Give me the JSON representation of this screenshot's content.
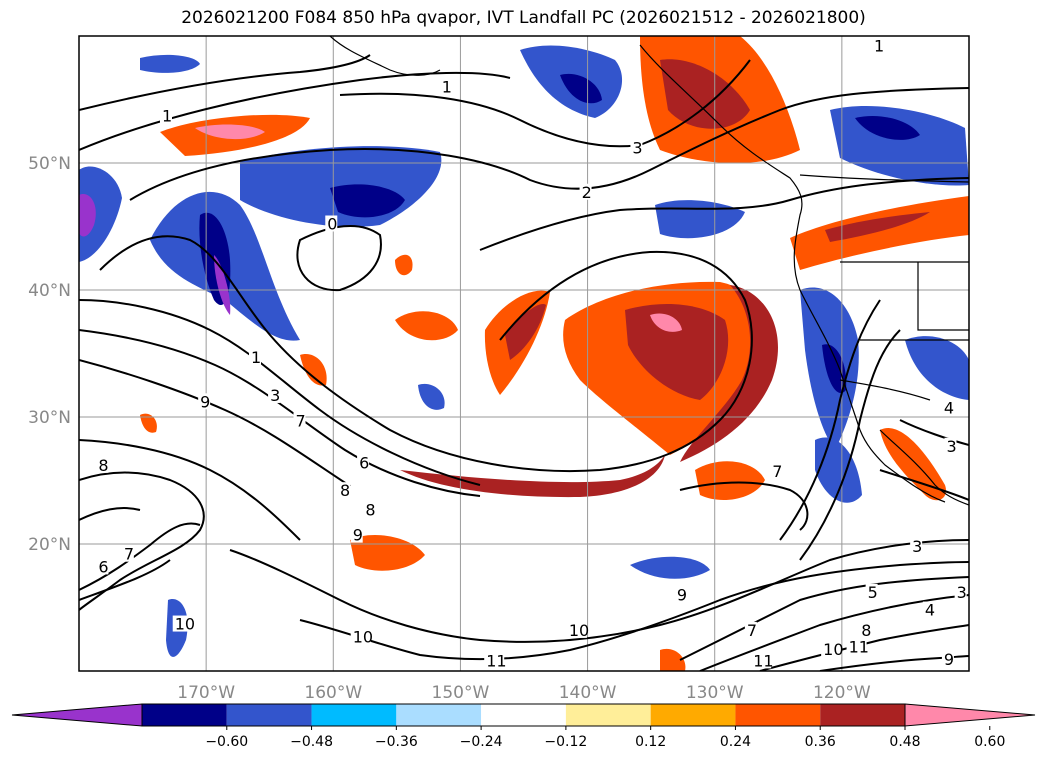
{
  "title": "2026021200 F084 850 hPa qvapor, IVT Landfall PC (2026021512 - 2026021800)",
  "map": {
    "lon_range": [
      -180,
      -110
    ],
    "lat_range": [
      10,
      60
    ],
    "lon_ticks": [
      {
        "value": -170,
        "label": "170°W"
      },
      {
        "value": -160,
        "label": "160°W"
      },
      {
        "value": -150,
        "label": "150°W"
      },
      {
        "value": -140,
        "label": "140°W"
      },
      {
        "value": -130,
        "label": "130°W"
      },
      {
        "value": -120,
        "label": "120°W"
      }
    ],
    "lat_ticks": [
      {
        "value": 20,
        "label": "20°N"
      },
      {
        "value": 30,
        "label": "30°N"
      },
      {
        "value": 40,
        "label": "40°N"
      },
      {
        "value": 50,
        "label": "50°N"
      }
    ],
    "contour_labels": [
      {
        "text": "1",
        "lon": -173,
        "lat": 53.5
      },
      {
        "text": "1",
        "lon": -151,
        "lat": 55.8
      },
      {
        "text": "1",
        "lon": -117,
        "lat": 59
      },
      {
        "text": "3",
        "lon": -136,
        "lat": 51
      },
      {
        "text": "2",
        "lon": -140,
        "lat": 47.5
      },
      {
        "text": "0",
        "lon": -160,
        "lat": 45
      },
      {
        "text": "1",
        "lon": -166,
        "lat": 34.5
      },
      {
        "text": "3",
        "lon": -164.5,
        "lat": 31.5
      },
      {
        "text": "7",
        "lon": -162.5,
        "lat": 29.5
      },
      {
        "text": "6",
        "lon": -157.5,
        "lat": 26.2
      },
      {
        "text": "9",
        "lon": -170,
        "lat": 31
      },
      {
        "text": "8",
        "lon": -178,
        "lat": 26
      },
      {
        "text": "8",
        "lon": -159,
        "lat": 24
      },
      {
        "text": "8",
        "lon": -157,
        "lat": 22.5
      },
      {
        "text": "9",
        "lon": -158,
        "lat": 20.5
      },
      {
        "text": "7",
        "lon": -176,
        "lat": 19
      },
      {
        "text": "6",
        "lon": -178,
        "lat": 18
      },
      {
        "text": "10",
        "lon": -172,
        "lat": 13.5
      },
      {
        "text": "10",
        "lon": -158,
        "lat": 12.5
      },
      {
        "text": "10",
        "lon": -141,
        "lat": 13
      },
      {
        "text": "11",
        "lon": -147.5,
        "lat": 10.6
      },
      {
        "text": "9",
        "lon": -132.5,
        "lat": 15.8
      },
      {
        "text": "7",
        "lon": -127,
        "lat": 13
      },
      {
        "text": "11",
        "lon": -126.5,
        "lat": 10.6
      },
      {
        "text": "10",
        "lon": -121,
        "lat": 11.5
      },
      {
        "text": "11",
        "lon": -119,
        "lat": 11.7
      },
      {
        "text": "8",
        "lon": -118,
        "lat": 13
      },
      {
        "text": "5",
        "lon": -117.5,
        "lat": 16
      },
      {
        "text": "4",
        "lon": -113,
        "lat": 14.6
      },
      {
        "text": "3",
        "lon": -110.5,
        "lat": 16
      },
      {
        "text": "3",
        "lon": -114,
        "lat": 19.6
      },
      {
        "text": "7",
        "lon": -125,
        "lat": 25.5
      },
      {
        "text": "4",
        "lon": -111.5,
        "lat": 30.5
      },
      {
        "text": "3",
        "lon": -111.3,
        "lat": 27.5
      },
      {
        "text": "9",
        "lon": -111.5,
        "lat": 10.7
      }
    ]
  },
  "colorbar": {
    "colors": [
      "#9933cc",
      "#000088",
      "#3355cc",
      "#00bbff",
      "#aaddff",
      "#ffffff",
      "#ffee99",
      "#ffaa00",
      "#ff5500",
      "#aa2222",
      "#ff88aa"
    ],
    "labels": [
      "−0.60",
      "−0.48",
      "−0.36",
      "−0.24",
      "−0.12",
      "0.12",
      "0.24",
      "0.36",
      "0.48",
      "0.60"
    ]
  }
}
